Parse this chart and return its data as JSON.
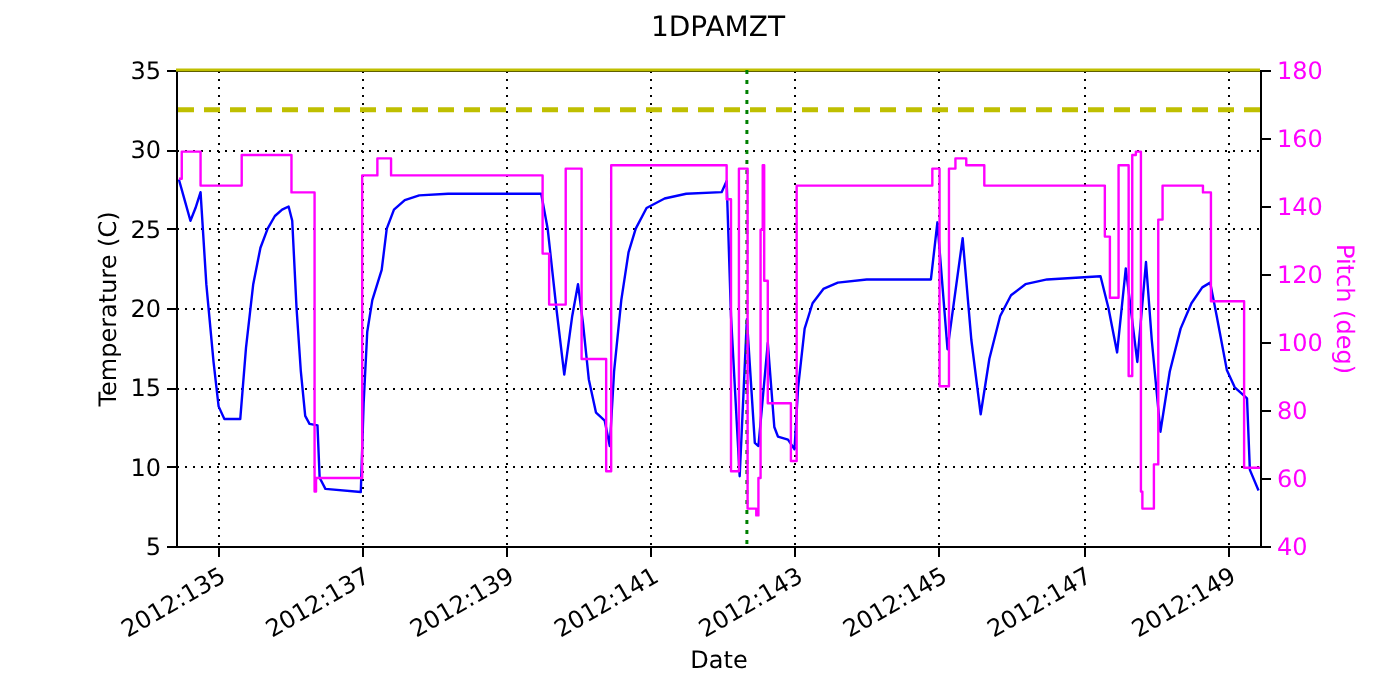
{
  "chart_data": {
    "type": "line",
    "title": "1DPAMZT",
    "xlabel": "Date",
    "ylabel": "Temperature (C)",
    "y2label": "Pitch (deg)",
    "xlim": [
      "2012-05-13T10:19",
      "2012-05-28T10:48"
    ],
    "xticks": [
      {
        "value": "2012-05-14",
        "label": "2012:135"
      },
      {
        "value": "2012-05-16",
        "label": "2012:137"
      },
      {
        "value": "2012-05-18",
        "label": "2012:139"
      },
      {
        "value": "2012-05-20",
        "label": "2012:141"
      },
      {
        "value": "2012-05-22",
        "label": "2012:143"
      },
      {
        "value": "2012-05-24",
        "label": "2012:145"
      },
      {
        "value": "2012-05-26",
        "label": "2012:147"
      },
      {
        "value": "2012-05-28",
        "label": "2012:149"
      }
    ],
    "ylim": [
      5,
      35
    ],
    "yticks": [
      5,
      10,
      15,
      20,
      25,
      30,
      35
    ],
    "y2lim": [
      40,
      180
    ],
    "y2ticks": [
      40,
      60,
      80,
      100,
      120,
      140,
      160,
      180
    ],
    "grid": true,
    "series": [
      {
        "type": "step",
        "axis": "y2",
        "color": "#ff00ff",
        "x": [
          "2012-05-13T11:17",
          "2012-05-13T12:14",
          "2012-05-13T18:00",
          "2012-05-13T18:29",
          "2012-05-14T07:41",
          "2012-05-14T08:10",
          "2012-05-14T23:46",
          "2012-05-15T00:43",
          "2012-05-15T08:24",
          "2012-05-15T08:53",
          "2012-05-15T23:46",
          "2012-05-16T00:14",
          "2012-05-16T04:48",
          "2012-05-16T05:17",
          "2012-05-16T09:22",
          "2012-05-16T09:50",
          "2012-05-18T11:46",
          "2012-05-18T12:14",
          "2012-05-18T13:55",
          "2012-05-18T14:24",
          "2012-05-18T19:26",
          "2012-05-18T19:55",
          "2012-05-19T00:43",
          "2012-05-19T01:12",
          "2012-05-19T08:53",
          "2012-05-19T09:22",
          "2012-05-19T10:34",
          "2012-05-19T11:02",
          "2012-05-21T00:58",
          "2012-05-21T01:26",
          "2012-05-21T02:24",
          "2012-05-21T02:53",
          "2012-05-21T05:02",
          "2012-05-21T05:31",
          "2012-05-21T07:55",
          "2012-05-21T08:24",
          "2012-05-21T10:48",
          "2012-05-21T11:17",
          "2012-05-21T12:00",
          "2012-05-21T12:43",
          "2012-05-21T13:26",
          "2012-05-21T13:55",
          "2012-05-21T15:07",
          "2012-05-21T15:50",
          "2012-05-21T22:19",
          "2012-05-21T22:48",
          "2012-05-22T00:14",
          "2012-05-22T00:43",
          "2012-05-23T21:22",
          "2012-05-23T21:50",
          "2012-05-23T23:46",
          "2012-05-24T00:14",
          "2012-05-24T02:53",
          "2012-05-24T03:22",
          "2012-05-24T05:02",
          "2012-05-24T05:31",
          "2012-05-24T08:38",
          "2012-05-24T09:07",
          "2012-05-24T14:38",
          "2012-05-24T15:07",
          "2012-05-26T06:43",
          "2012-05-26T07:12",
          "2012-05-26T08:24",
          "2012-05-26T08:53",
          "2012-05-26T11:17",
          "2012-05-26T11:46",
          "2012-05-26T14:38",
          "2012-05-26T15:07",
          "2012-05-26T15:50",
          "2012-05-26T16:19",
          "2012-05-26T17:31",
          "2012-05-26T18:00",
          "2012-05-26T19:12",
          "2012-05-26T19:41",
          "2012-05-26T23:02",
          "2012-05-26T23:31",
          "2012-05-27T00:29",
          "2012-05-27T00:58",
          "2012-05-27T01:55",
          "2012-05-27T02:24",
          "2012-05-27T03:36",
          "2012-05-27T04:05",
          "2012-05-27T15:22",
          "2012-05-27T15:50",
          "2012-05-27T18:00",
          "2012-05-27T18:29",
          "2012-05-28T05:02",
          "2012-05-28T05:31",
          "2012-05-28T10:48"
        ],
        "values": [
          148,
          156,
          156,
          146,
          146,
          155,
          155,
          144,
          56,
          60,
          60,
          149,
          149,
          154,
          154,
          149,
          149,
          126,
          126,
          111,
          111,
          151,
          151,
          95,
          95,
          62,
          62,
          152,
          152,
          142,
          142,
          62,
          62,
          151,
          151,
          51,
          51,
          49,
          60,
          133,
          152,
          118,
          82,
          82,
          82,
          65,
          65,
          146,
          146,
          151,
          151,
          87,
          87,
          151,
          151,
          154,
          154,
          152,
          152,
          146,
          146,
          131,
          131,
          113,
          113,
          152,
          152,
          90,
          90,
          155,
          156,
          156,
          56,
          51,
          51,
          64,
          64,
          136,
          136,
          146,
          146,
          146,
          146,
          144,
          144,
          112,
          112,
          63,
          63
        ]
      },
      {
        "type": "line",
        "color": "#0000ff",
        "x": [
          "2012-05-13T11:17",
          "2012-05-13T13:12",
          "2012-05-13T15:07",
          "2012-05-13T16:48",
          "2012-05-13T18:29",
          "2012-05-13T20:24",
          "2012-05-13T22:48",
          "2012-05-14T00:29",
          "2012-05-14T02:24",
          "2012-05-14T07:41",
          "2012-05-14T09:36",
          "2012-05-14T12:00",
          "2012-05-14T14:24",
          "2012-05-14T16:48",
          "2012-05-14T19:12",
          "2012-05-14T21:36",
          "2012-05-14T23:46",
          "2012-05-15T00:58",
          "2012-05-15T02:24",
          "2012-05-15T03:50",
          "2012-05-15T05:17",
          "2012-05-15T06:43",
          "2012-05-15T09:22",
          "2012-05-15T10:05",
          "2012-05-15T12:00",
          "2012-05-15T23:46",
          "2012-05-16T00:43",
          "2012-05-16T01:55",
          "2012-05-16T03:36",
          "2012-05-16T06:43",
          "2012-05-16T08:24",
          "2012-05-16T10:48",
          "2012-05-16T14:24",
          "2012-05-16T19:12",
          "2012-05-17T04:48",
          "2012-05-18T11:46",
          "2012-05-18T13:55",
          "2012-05-18T16:48",
          "2012-05-18T19:26",
          "2012-05-18T22:05",
          "2012-05-19T00:00",
          "2012-05-19T01:41",
          "2012-05-19T03:36",
          "2012-05-19T06:00",
          "2012-05-19T08:53",
          "2012-05-19T10:34",
          "2012-05-19T12:00",
          "2012-05-19T14:24",
          "2012-05-19T16:48",
          "2012-05-19T19:12",
          "2012-05-19T22:48",
          "2012-05-20T04:48",
          "2012-05-20T12:00",
          "2012-05-20T23:46",
          "2012-05-21T01:26",
          "2012-05-21T02:53",
          "2012-05-21T05:46",
          "2012-05-21T08:10",
          "2012-05-21T10:48",
          "2012-05-21T12:00",
          "2012-05-21T15:07",
          "2012-05-21T17:17",
          "2012-05-21T18:29",
          "2012-05-21T21:50",
          "2012-05-22T00:00",
          "2012-05-22T01:12",
          "2012-05-22T03:22",
          "2012-05-22T06:00",
          "2012-05-22T09:36",
          "2012-05-22T14:24",
          "2012-05-23T00:00",
          "2012-05-23T21:22",
          "2012-05-23T23:31",
          "2012-05-24T02:53",
          "2012-05-24T07:55",
          "2012-05-24T10:48",
          "2012-05-24T13:55",
          "2012-05-24T16:48",
          "2012-05-24T20:24",
          "2012-05-25T00:00",
          "2012-05-25T04:48",
          "2012-05-25T12:00",
          "2012-05-26T05:46",
          "2012-05-26T08:24",
          "2012-05-26T11:17",
          "2012-05-26T14:10",
          "2012-05-26T18:00",
          "2012-05-26T20:53",
          "2012-05-26T22:48",
          "2012-05-27T01:41",
          "2012-05-27T04:48",
          "2012-05-27T08:24",
          "2012-05-27T12:00",
          "2012-05-27T15:36",
          "2012-05-27T18:14",
          "2012-05-27T20:24",
          "2012-05-27T23:46",
          "2012-05-28T02:24",
          "2012-05-28T06:29",
          "2012-05-28T07:26",
          "2012-05-28T10:19"
        ],
        "values": [
          28.1,
          26.8,
          25.5,
          26.3,
          27.3,
          21.5,
          16.6,
          13.8,
          13.0,
          13.0,
          17.5,
          21.5,
          23.8,
          25.0,
          25.8,
          26.2,
          26.4,
          25.5,
          20.0,
          16.0,
          13.2,
          12.7,
          12.6,
          9.3,
          8.6,
          8.4,
          14.0,
          18.5,
          20.5,
          22.4,
          25.0,
          26.2,
          26.8,
          27.1,
          27.2,
          27.2,
          25.0,
          20.0,
          15.8,
          19.5,
          21.5,
          19.0,
          15.5,
          13.4,
          12.9,
          11.3,
          16.0,
          20.5,
          23.5,
          25.0,
          26.3,
          26.9,
          27.2,
          27.3,
          28.0,
          19.5,
          9.4,
          19.3,
          11.5,
          11.3,
          17.8,
          12.5,
          11.9,
          11.7,
          11.1,
          15.0,
          18.7,
          20.3,
          21.2,
          21.6,
          21.8,
          21.8,
          25.4,
          17.4,
          24.4,
          18.0,
          13.3,
          16.8,
          19.5,
          20.8,
          21.5,
          21.8,
          22.0,
          20.0,
          17.2,
          22.5,
          16.6,
          22.9,
          18.0,
          12.2,
          16.0,
          18.7,
          20.3,
          21.3,
          21.6,
          19.5,
          16.1,
          15.0,
          14.3,
          9.8,
          8.5
        ]
      }
    ],
    "ref_lines": [
      {
        "axis": "y",
        "value": 35,
        "color": "#bfbf00",
        "line_style": "solid"
      },
      {
        "axis": "y",
        "value": 32.5,
        "color": "#bfbf00",
        "line_style": "dashed"
      },
      {
        "axis": "x",
        "value": "2012-05-21T08:10",
        "color": "#008000",
        "line_style": "dotted"
      }
    ]
  }
}
